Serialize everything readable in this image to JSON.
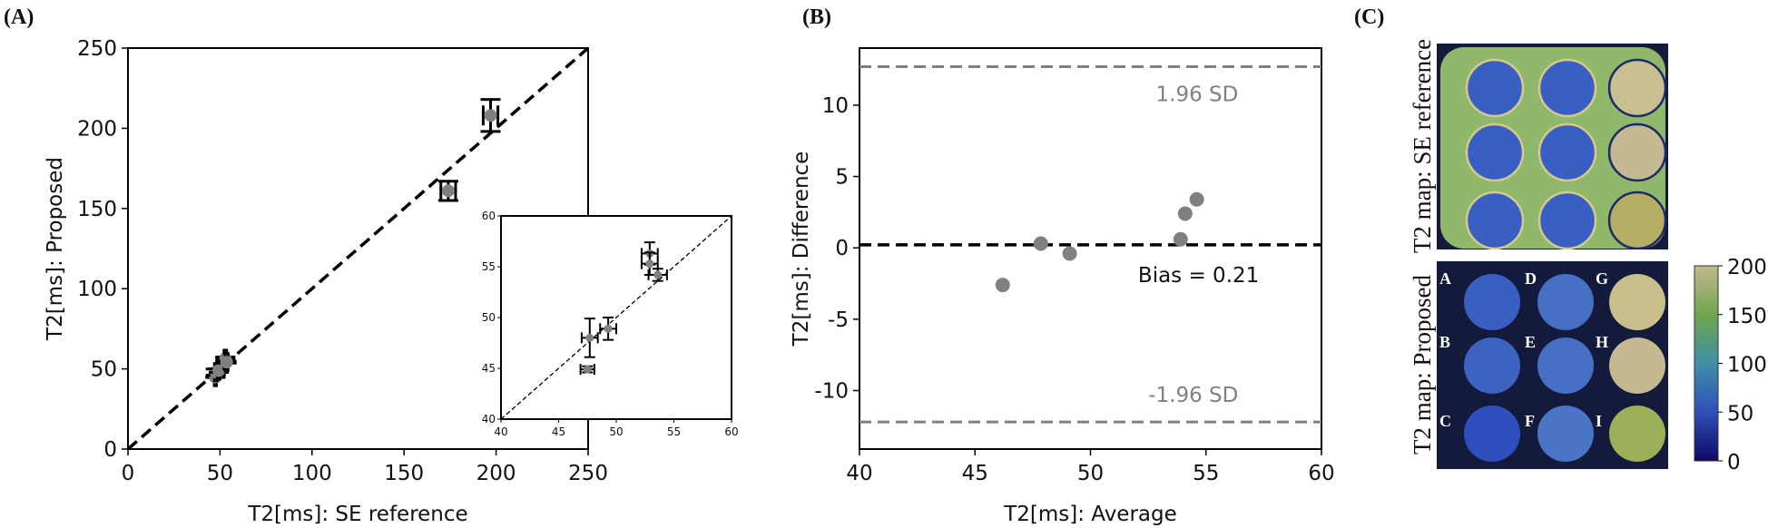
{
  "panel_labels": [
    "(A)",
    "(B)",
    "(C)"
  ],
  "colors": {
    "point": "#808080",
    "sd_line": "#808080",
    "identity": "#000000",
    "bias": "#000000"
  },
  "chart_data": [
    {
      "type": "scatter",
      "panel": "(A)",
      "xlabel": "T2[ms]: SE reference",
      "ylabel": "T2[ms]: Proposed",
      "xlim": [
        0,
        250
      ],
      "ylim": [
        0,
        250
      ],
      "xticks": [
        "0",
        "50",
        "100",
        "150",
        "200",
        "250"
      ],
      "yticks": [
        "0",
        "50",
        "100",
        "150",
        "200",
        "250"
      ],
      "identity_line": true,
      "points": [
        {
          "x": 47.5,
          "y": 44.9,
          "xerr": 0.6,
          "yerr": 0.3
        },
        {
          "x": 47.7,
          "y": 48.0,
          "xerr": 0.7,
          "yerr": 1.9
        },
        {
          "x": 49.3,
          "y": 48.9,
          "xerr": 0.7,
          "yerr": 1.1
        },
        {
          "x": 52.9,
          "y": 56.3,
          "xerr": 0.7,
          "yerr": 1.1
        },
        {
          "x": 52.9,
          "y": 55.3,
          "xerr": 0.7,
          "yerr": 1.1
        },
        {
          "x": 53.6,
          "y": 54.2,
          "xerr": 0.8,
          "yerr": 0.6
        },
        {
          "x": 174,
          "y": 161,
          "xerr": 4,
          "yerr": 6
        },
        {
          "x": 197,
          "y": 208,
          "xerr": 4,
          "yerr": 10
        }
      ],
      "inset": {
        "xlim": [
          40,
          60
        ],
        "ylim": [
          40,
          60
        ],
        "xticks": [
          "40",
          "45",
          "50",
          "55",
          "60"
        ],
        "yticks": [
          "40",
          "45",
          "50",
          "55",
          "60"
        ]
      }
    },
    {
      "type": "scatter",
      "panel": "(B)",
      "xlabel": "T2[ms]: Average",
      "ylabel": "T2[ms]: Difference",
      "xlim": [
        40,
        60
      ],
      "ylim": [
        -14.1,
        14.0
      ],
      "xticks": [
        "40",
        "45",
        "50",
        "55",
        "60"
      ],
      "yticks": [
        "-10",
        "-5",
        "0",
        "5",
        "10"
      ],
      "points": [
        {
          "x": 46.2,
          "y": -2.6
        },
        {
          "x": 47.85,
          "y": 0.3
        },
        {
          "x": 49.1,
          "y": -0.4
        },
        {
          "x": 53.9,
          "y": 0.6
        },
        {
          "x": 54.1,
          "y": 2.4
        },
        {
          "x": 54.6,
          "y": 3.4
        }
      ],
      "bias": 0.21,
      "upper_loa": 12.7,
      "lower_loa": -12.2,
      "annotations": {
        "bias_text": "Bias = 0.21",
        "upper_text": "1.96 SD",
        "lower_text": "-1.96 SD"
      }
    },
    {
      "type": "heatmap",
      "panel": "(C)",
      "top_label": "T2 map: SE reference",
      "bottom_label": "T2 map: Proposed",
      "vial_labels": [
        "A",
        "B",
        "C",
        "D",
        "E",
        "F",
        "G",
        "H",
        "I"
      ],
      "colorbar": {
        "range": [
          0,
          200
        ],
        "ticks": [
          "0",
          "50",
          "100",
          "150",
          "200"
        ],
        "colors": [
          "#0c0a63",
          "#2f4fb8",
          "#3f8fa8",
          "#6fa64e",
          "#c4b88f"
        ]
      }
    }
  ]
}
